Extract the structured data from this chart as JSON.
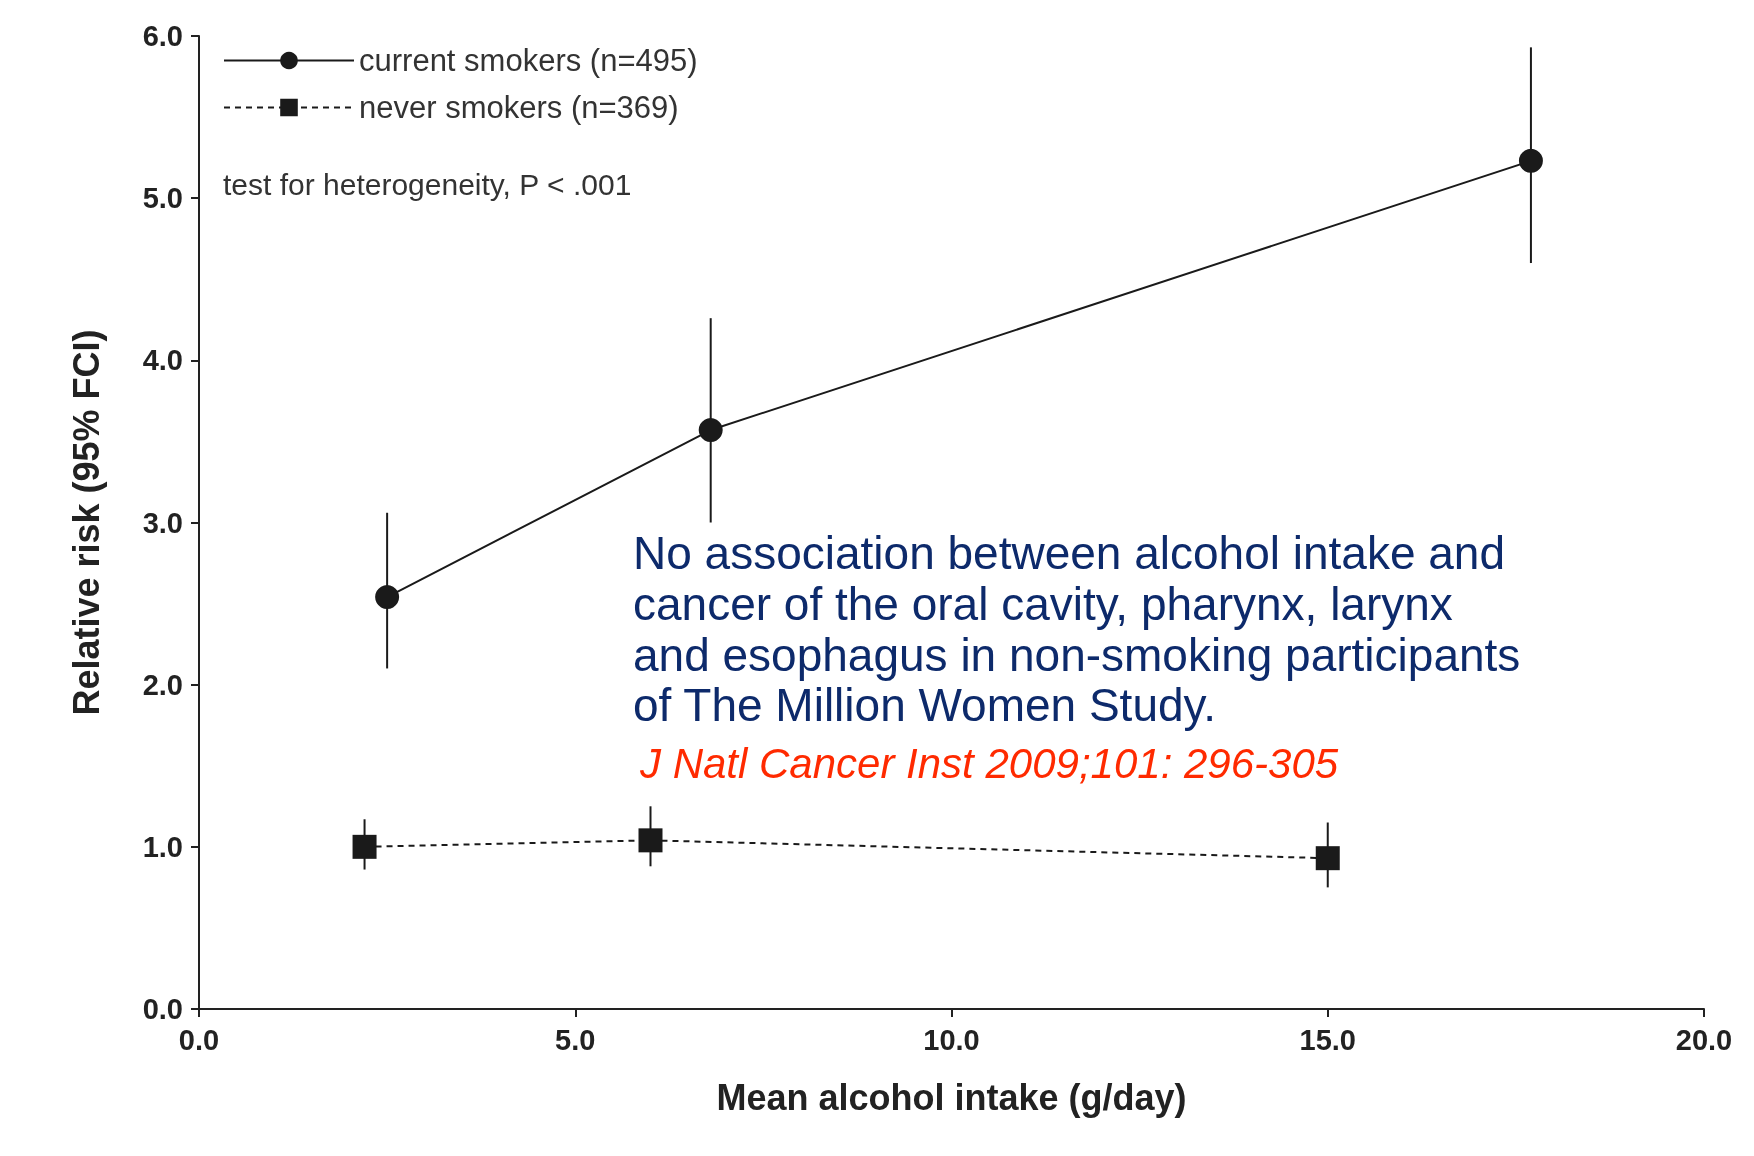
{
  "chart_data": {
    "type": "line",
    "xlabel": "Mean alcohol intake (g/day)",
    "ylabel": "Relative risk (95% FCI)",
    "xlim": [
      0,
      20
    ],
    "xticks": [
      {
        "value": 0,
        "label": "0.0"
      },
      {
        "value": 5,
        "label": "5.0"
      },
      {
        "value": 10,
        "label": "10.0"
      },
      {
        "value": 15,
        "label": "15.0"
      },
      {
        "value": 20,
        "label": "20.0"
      }
    ],
    "ylim": [
      0,
      6
    ],
    "yticks": [
      {
        "value": 0,
        "label": "0.0"
      },
      {
        "value": 1,
        "label": "1.0"
      },
      {
        "value": 2,
        "label": "2.0"
      },
      {
        "value": 3,
        "label": "3.0"
      },
      {
        "value": 4,
        "label": "4.0"
      },
      {
        "value": 5,
        "label": "5.0"
      },
      {
        "value": 6,
        "label": "6.0"
      }
    ],
    "grid": false,
    "legend": "top left",
    "series": [
      {
        "name": "current smokers (n=495)",
        "color": "#1a1a1a",
        "marker": "circle",
        "line_style": "solid",
        "x": [
          2.5,
          6.8,
          17.7
        ],
        "values": [
          2.54,
          3.57,
          5.23
        ],
        "errors": [
          [
            2.1,
            3.06
          ],
          [
            3.0,
            4.26
          ],
          [
            4.6,
            5.93
          ]
        ]
      },
      {
        "name": "never smokers (n=369)",
        "color": "#1a1a1a",
        "marker": "square",
        "line_style": "dashed",
        "x": [
          2.2,
          6.0,
          15.0
        ],
        "values": [
          1.0,
          1.04,
          0.93
        ],
        "errors": [
          [
            0.86,
            1.17
          ],
          [
            0.88,
            1.25
          ],
          [
            0.75,
            1.15
          ]
        ]
      }
    ],
    "annotations": [
      "test for heterogeneity, P < .001",
      "No association between alcohol intake and cancer of the oral cavity, pharynx, larynx and esophagus in non-smoking participants of The Million Women Study.",
      "J Natl Cancer Inst 2009;101: 296-305"
    ]
  }
}
